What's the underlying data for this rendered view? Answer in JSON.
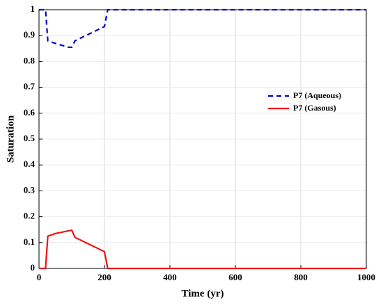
{
  "chart_data": {
    "type": "line",
    "x_label": "Time (yr)",
    "y_label": "Saturation",
    "xlim": [
      0,
      1000
    ],
    "xticks": [
      0,
      200,
      400,
      600,
      800,
      1000
    ],
    "ylim": [
      0,
      1
    ],
    "yticks": [
      0,
      0.1,
      0.2,
      0.3,
      0.4,
      0.5,
      0.6,
      0.7,
      0.8,
      0.9,
      1
    ],
    "grid": true,
    "legend": "center right",
    "series": [
      {
        "name": "P7 (Aqueous)",
        "color": "#0000cc",
        "dash": true,
        "x": [
          0,
          20,
          27,
          50,
          90,
          100,
          110,
          200,
          210,
          1000
        ],
        "values": [
          1,
          1,
          0.88,
          0.87,
          0.855,
          0.855,
          0.88,
          0.935,
          1,
          1
        ]
      },
      {
        "name": "P7 (Gasous)",
        "color": "#ee1111",
        "dash": false,
        "x": [
          0,
          20,
          27,
          50,
          100,
          110,
          200,
          210,
          1000
        ],
        "values": [
          0,
          0,
          0.125,
          0.135,
          0.148,
          0.12,
          0.065,
          0,
          0
        ]
      }
    ]
  }
}
